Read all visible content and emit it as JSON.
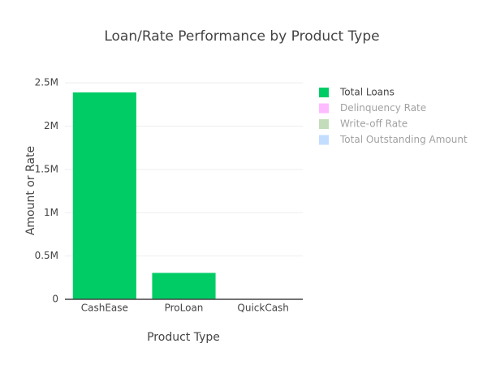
{
  "chart_data": {
    "type": "bar",
    "title": "Loan/Rate Performance by Product Type",
    "x_label": "Product Type",
    "y_label": "Amount or Rate",
    "categories": [
      "CashEase",
      "ProLoan",
      "QuickCash"
    ],
    "series": [
      {
        "name": "Total Loans",
        "color": "#00cc66",
        "values": [
          2390000,
          305000,
          0
        ]
      },
      {
        "name": "Delinquency Rate",
        "color": "#ff77ff",
        "visible": false
      },
      {
        "name": "Write-off Rate",
        "color": "#88bb77",
        "visible": false
      },
      {
        "name": "Total Outstanding Amount",
        "color": "#88bbff",
        "visible": false
      }
    ],
    "ylim": [
      0,
      2520000
    ],
    "yticks": [
      0,
      {
        "value": 500000,
        "label": "0.5M"
      },
      {
        "value": 1000000,
        "label": "1M"
      },
      {
        "value": 1500000,
        "label": "1.5M"
      },
      {
        "value": 2000000,
        "label": "2M"
      },
      {
        "value": 2500000,
        "label": "2.5M"
      }
    ],
    "grid": true,
    "legend": "right"
  }
}
